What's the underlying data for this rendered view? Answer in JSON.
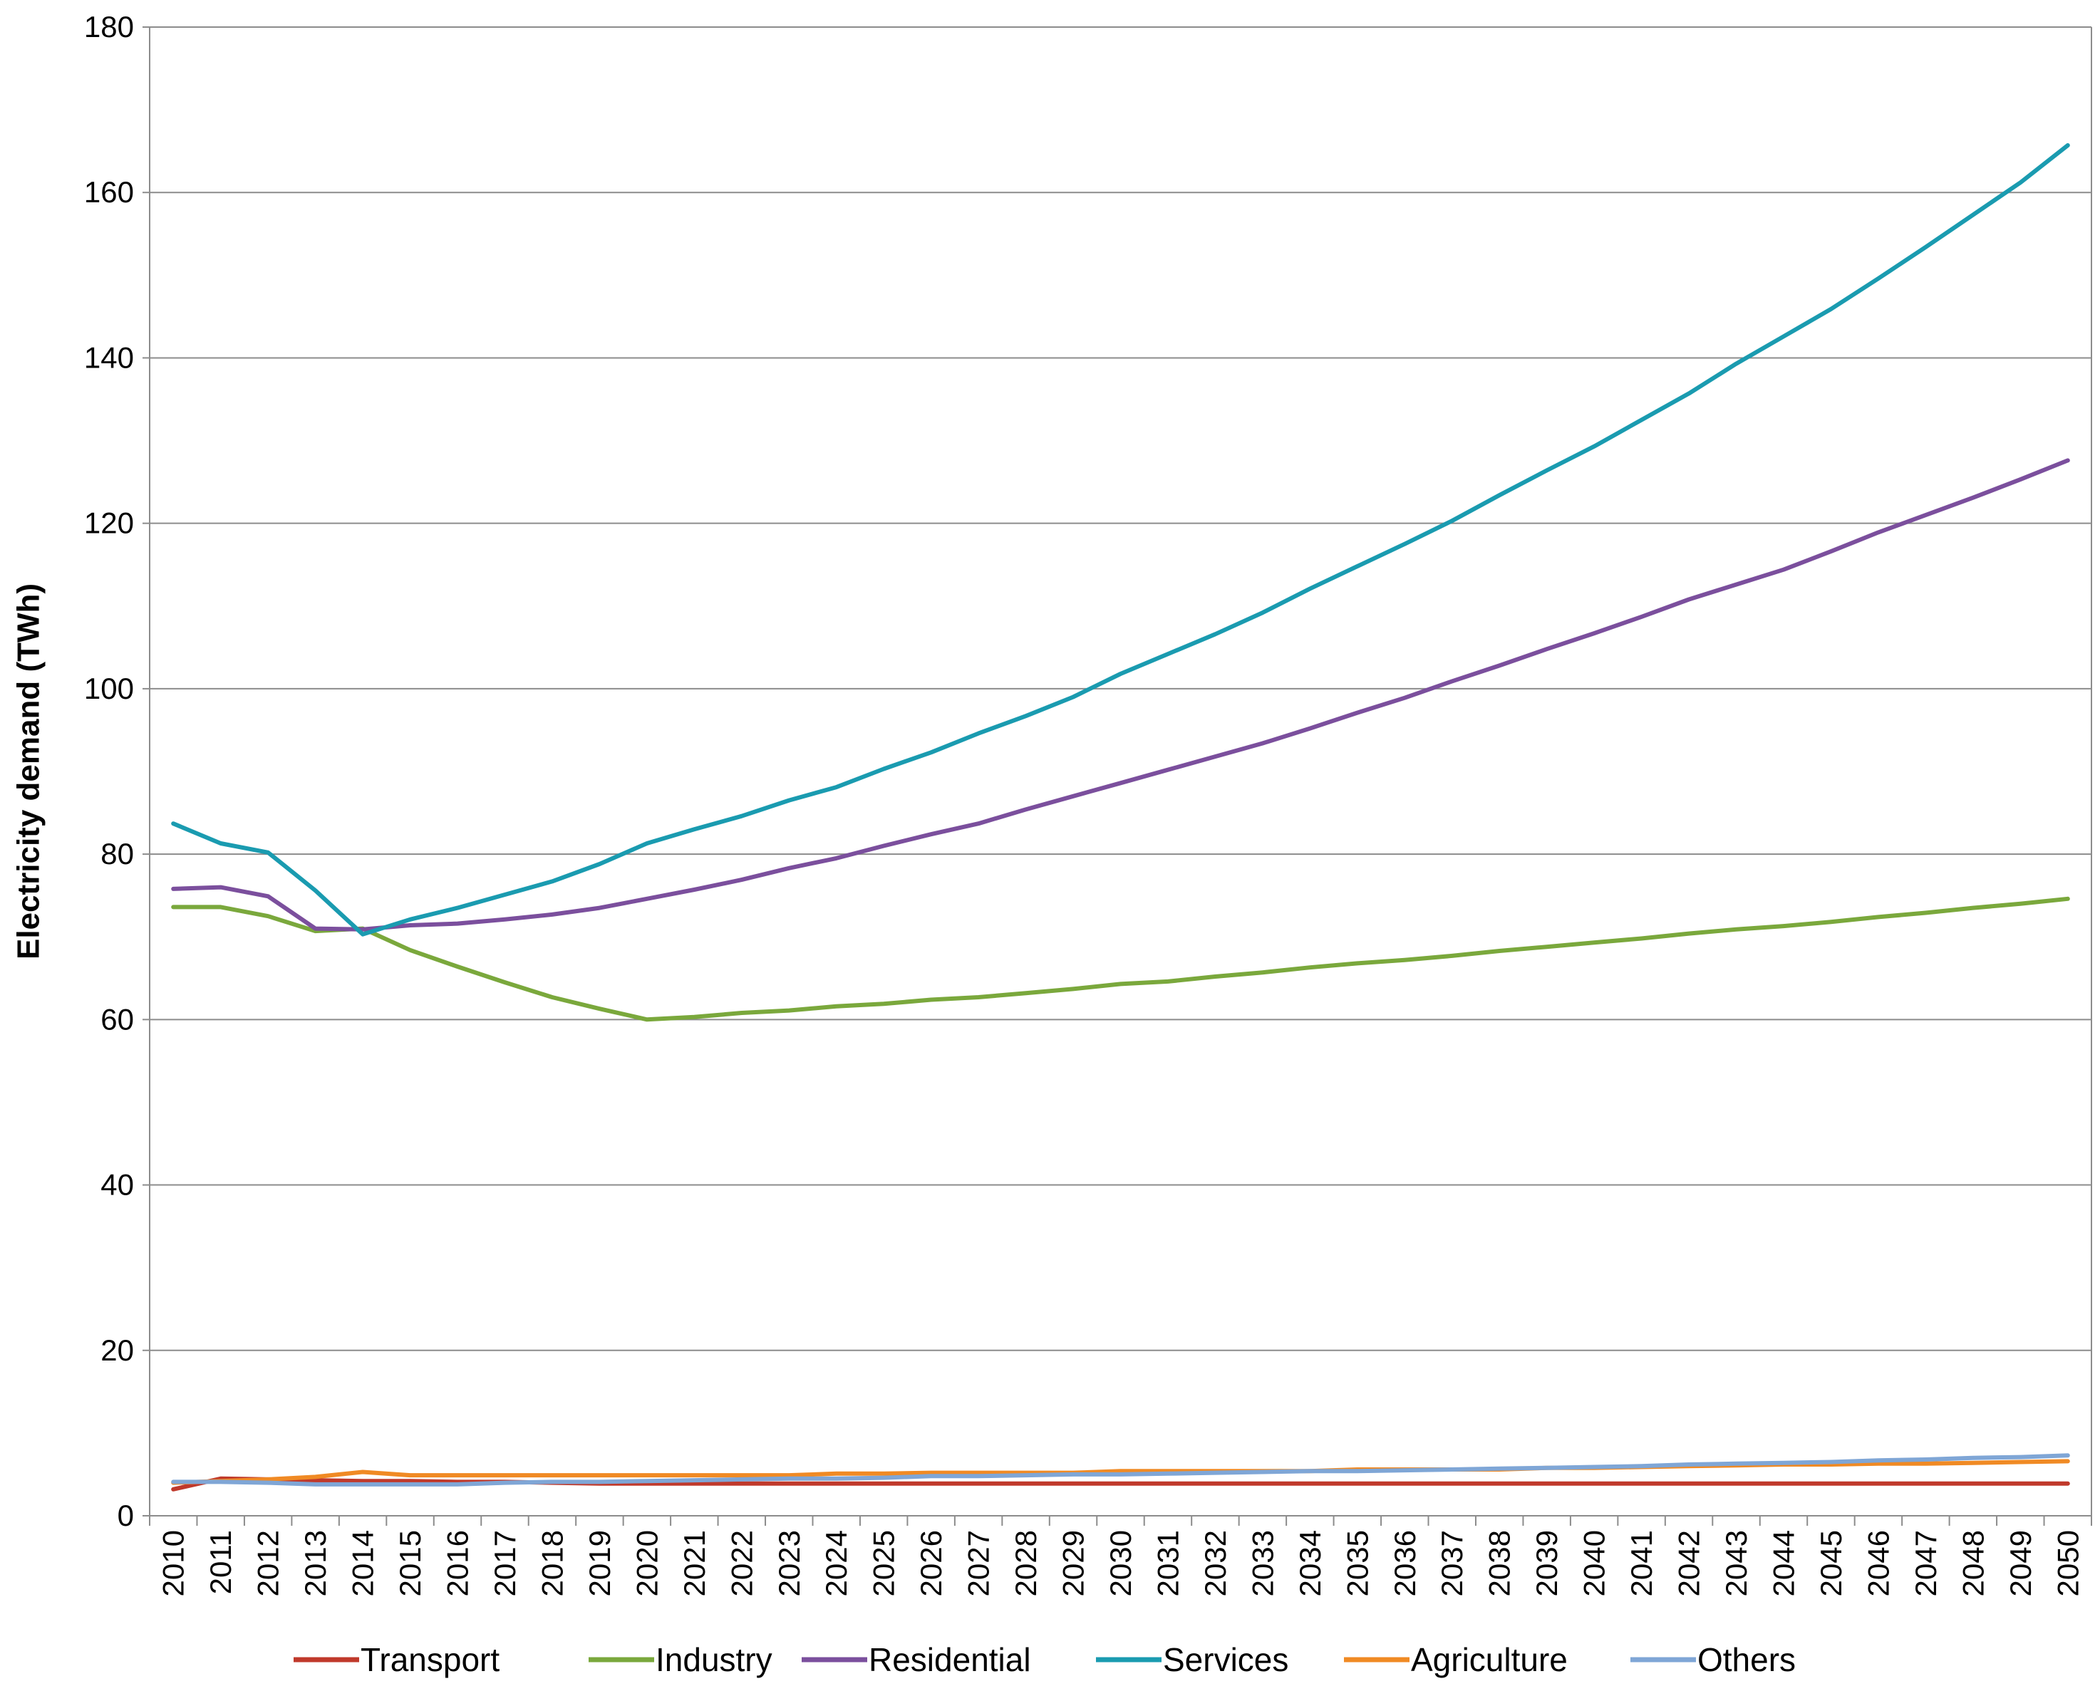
{
  "chart_data": {
    "type": "line",
    "title": "",
    "xlabel": "",
    "ylabel": "Electricity demand (TWh)",
    "ylim": [
      0,
      180
    ],
    "yticks": [
      0,
      20,
      40,
      60,
      80,
      100,
      120,
      140,
      160,
      180
    ],
    "grid": "horizontal",
    "legend_position": "bottom",
    "x": [
      "2010",
      "2011",
      "2012",
      "2013",
      "2014",
      "2015",
      "2016",
      "2017",
      "2018",
      "2019",
      "2020",
      "2021",
      "2022",
      "2023",
      "2024",
      "2025",
      "2026",
      "2027",
      "2028",
      "2029",
      "2030",
      "2031",
      "2032",
      "2033",
      "2034",
      "2035",
      "2036",
      "2037",
      "2038",
      "2039",
      "2040",
      "2041",
      "2042",
      "2043",
      "2044",
      "2045",
      "2046",
      "2047",
      "2048",
      "2049",
      "2050"
    ],
    "series": [
      {
        "name": "Transport",
        "color": "#c0392b",
        "values": [
          3.2,
          4.5,
          4.4,
          4.3,
          4.2,
          4.2,
          4.1,
          4.1,
          4.0,
          3.9,
          3.9,
          3.9,
          3.9,
          3.9,
          3.9,
          3.9,
          3.9,
          3.9,
          3.9,
          3.9,
          3.9,
          3.9,
          3.9,
          3.9,
          3.9,
          3.9,
          3.9,
          3.9,
          3.9,
          3.9,
          3.9,
          3.9,
          3.9,
          3.9,
          3.9,
          3.9,
          3.9,
          3.9,
          3.9,
          3.9,
          3.9
        ]
      },
      {
        "name": "Industry",
        "color": "#7aa83c",
        "values": [
          73.6,
          73.6,
          72.5,
          70.7,
          71.0,
          68.4,
          66.4,
          64.5,
          62.7,
          61.3,
          60.0,
          60.3,
          60.8,
          61.1,
          61.6,
          61.9,
          62.4,
          62.7,
          63.2,
          63.7,
          64.3,
          64.6,
          65.2,
          65.7,
          66.3,
          66.8,
          67.2,
          67.7,
          68.3,
          68.8,
          69.3,
          69.8,
          70.4,
          70.9,
          71.3,
          71.8,
          72.4,
          72.9,
          73.5,
          74.0,
          74.6
        ]
      },
      {
        "name": "Residential",
        "color": "#7b4f9d",
        "values": [
          75.8,
          76.0,
          74.9,
          71.0,
          70.9,
          71.4,
          71.6,
          72.1,
          72.7,
          73.5,
          74.6,
          75.7,
          76.9,
          78.3,
          79.5,
          81.0,
          82.4,
          83.7,
          85.4,
          87.0,
          88.6,
          90.2,
          91.8,
          93.4,
          95.2,
          97.1,
          98.9,
          100.9,
          102.8,
          104.8,
          106.7,
          108.7,
          110.8,
          112.6,
          114.4,
          116.6,
          118.9,
          121.0,
          123.1,
          125.3,
          127.6
        ]
      },
      {
        "name": "Services",
        "color": "#1a9bb0",
        "values": [
          83.7,
          81.3,
          80.2,
          75.6,
          70.3,
          72.1,
          73.5,
          75.1,
          76.7,
          78.8,
          81.3,
          83.0,
          84.6,
          86.5,
          88.1,
          90.3,
          92.3,
          94.6,
          96.7,
          99.0,
          101.8,
          104.2,
          106.6,
          109.2,
          112.1,
          114.8,
          117.5,
          120.3,
          123.4,
          126.4,
          129.3,
          132.5,
          135.7,
          139.3,
          142.6,
          145.9,
          149.6,
          153.4,
          157.3,
          161.2,
          165.7
        ]
      },
      {
        "name": "Agriculture",
        "color": "#f08a24",
        "values": [
          4.0,
          4.2,
          4.4,
          4.7,
          5.3,
          4.9,
          4.9,
          4.9,
          4.9,
          4.9,
          4.9,
          4.9,
          4.9,
          4.9,
          5.1,
          5.1,
          5.2,
          5.2,
          5.2,
          5.2,
          5.4,
          5.4,
          5.4,
          5.4,
          5.4,
          5.6,
          5.6,
          5.6,
          5.6,
          5.8,
          5.8,
          5.9,
          6.0,
          6.1,
          6.2,
          6.2,
          6.3,
          6.3,
          6.4,
          6.5,
          6.6
        ]
      },
      {
        "name": "Others",
        "color": "#7fa6d6",
        "values": [
          4.1,
          4.1,
          4.0,
          3.8,
          3.8,
          3.8,
          3.8,
          4.0,
          4.1,
          4.1,
          4.2,
          4.3,
          4.4,
          4.5,
          4.5,
          4.6,
          4.8,
          4.8,
          4.9,
          5.0,
          5.0,
          5.1,
          5.2,
          5.3,
          5.4,
          5.4,
          5.5,
          5.6,
          5.7,
          5.8,
          5.9,
          6.0,
          6.2,
          6.3,
          6.4,
          6.5,
          6.7,
          6.8,
          7.0,
          7.1,
          7.3
        ]
      }
    ]
  }
}
